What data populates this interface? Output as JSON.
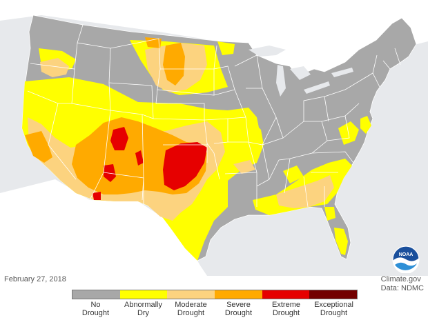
{
  "date": "February 27, 2018",
  "credit": {
    "line1": "Climate.gov",
    "line2": "Data: NDMC"
  },
  "logo": {
    "name": "noaa-logo",
    "text": "NOAA"
  },
  "legend": [
    {
      "l1": "No",
      "l2": "Drought",
      "color": "#a8a8a8"
    },
    {
      "l1": "Abnormally",
      "l2": "Dry",
      "color": "#ffff00"
    },
    {
      "l1": "Moderate",
      "l2": "Drought",
      "color": "#fcd37f"
    },
    {
      "l1": "Severe",
      "l2": "Drought",
      "color": "#ffaa00"
    },
    {
      "l1": "Extreme",
      "l2": "Drought",
      "color": "#e60000"
    },
    {
      "l1": "Exceptional",
      "l2": "Drought",
      "color": "#730000"
    }
  ],
  "colors": {
    "ocean": "#e7e9ec",
    "land_other": "#ffffff",
    "no_drought": "#a8a8a8",
    "abnormally_dry": "#ffff00",
    "moderate": "#fcd37f",
    "severe": "#ffaa00",
    "extreme": "#e60000"
  }
}
